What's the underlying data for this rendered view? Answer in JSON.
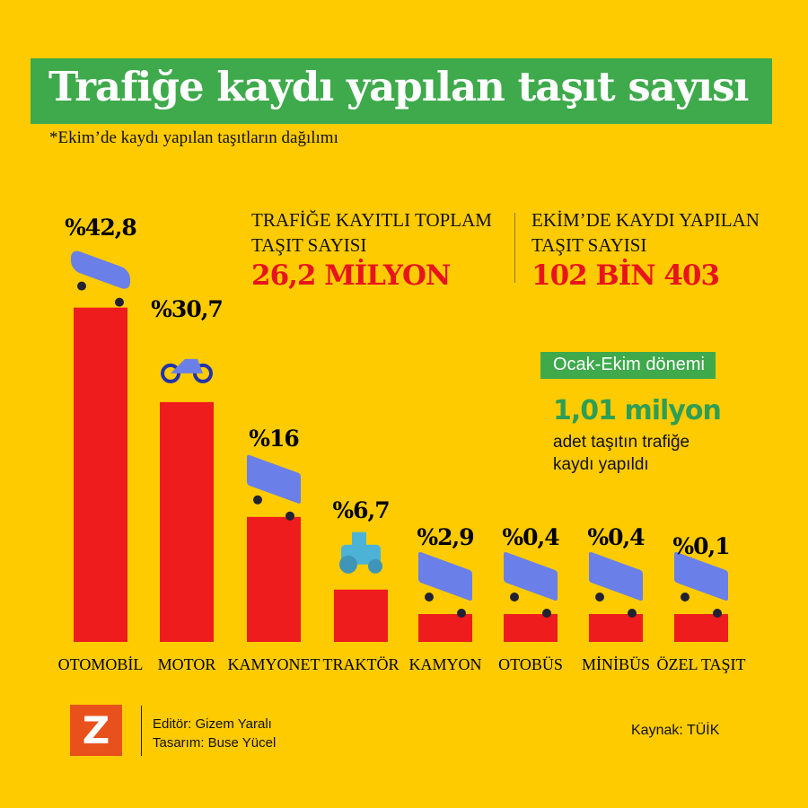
{
  "header": {
    "title": "Trafiğe kaydı yapılan taşıt sayısı",
    "subtitle": "*Ekim’de kaydı yapılan taşıtların dağılımı"
  },
  "stats": [
    {
      "label_line1": "TRAFİĞE KAYITLI TOPLAM",
      "label_line2": "TAŞIT SAYISI",
      "value": "26,2 MİLYON"
    },
    {
      "label_line1": "EKİM’DE KAYDI YAPILAN",
      "label_line2": "TAŞIT SAYISI",
      "value": "102 BİN 403"
    }
  ],
  "period": {
    "tag": "Ocak-Ekim dönemi",
    "value": "1,01 milyon",
    "desc_line1": "adet taşıtın trafiğe",
    "desc_line2": "kaydı yapıldı"
  },
  "colors": {
    "background": "#FECB00",
    "accent_green": "#3EAA4B",
    "bar": "#EE1C1C",
    "value_red": "#E8141C",
    "icon_blue": "#6A7FE8"
  },
  "chart_data": {
    "type": "bar",
    "categories": [
      "OTOMOBİL",
      "MOTOR",
      "KAMYONET",
      "TRAKTÖR",
      "KAMYON",
      "OTOBÜS",
      "MİNİBÜS",
      "ÖZEL TAŞIT"
    ],
    "values": [
      42.8,
      30.7,
      16,
      6.7,
      2.9,
      0.4,
      0.4,
      0.1
    ],
    "value_labels": [
      "%42,8",
      "%30,7",
      "%16",
      "%6,7",
      "%2,9",
      "%0,4",
      "%0,4",
      "%0,1"
    ],
    "icons": [
      "car-icon",
      "motorcycle-icon",
      "pickup-truck-icon",
      "tractor-icon",
      "truck-icon",
      "bus-icon",
      "minibus-icon",
      "special-vehicle-icon"
    ],
    "unit": "%",
    "grid": false,
    "legend": "none"
  },
  "footer": {
    "logo": "Z",
    "editor": "Editör: Gizem Yaralı",
    "design": "Tasarım: Buse Yücel",
    "source": "Kaynak: TÜİK"
  }
}
